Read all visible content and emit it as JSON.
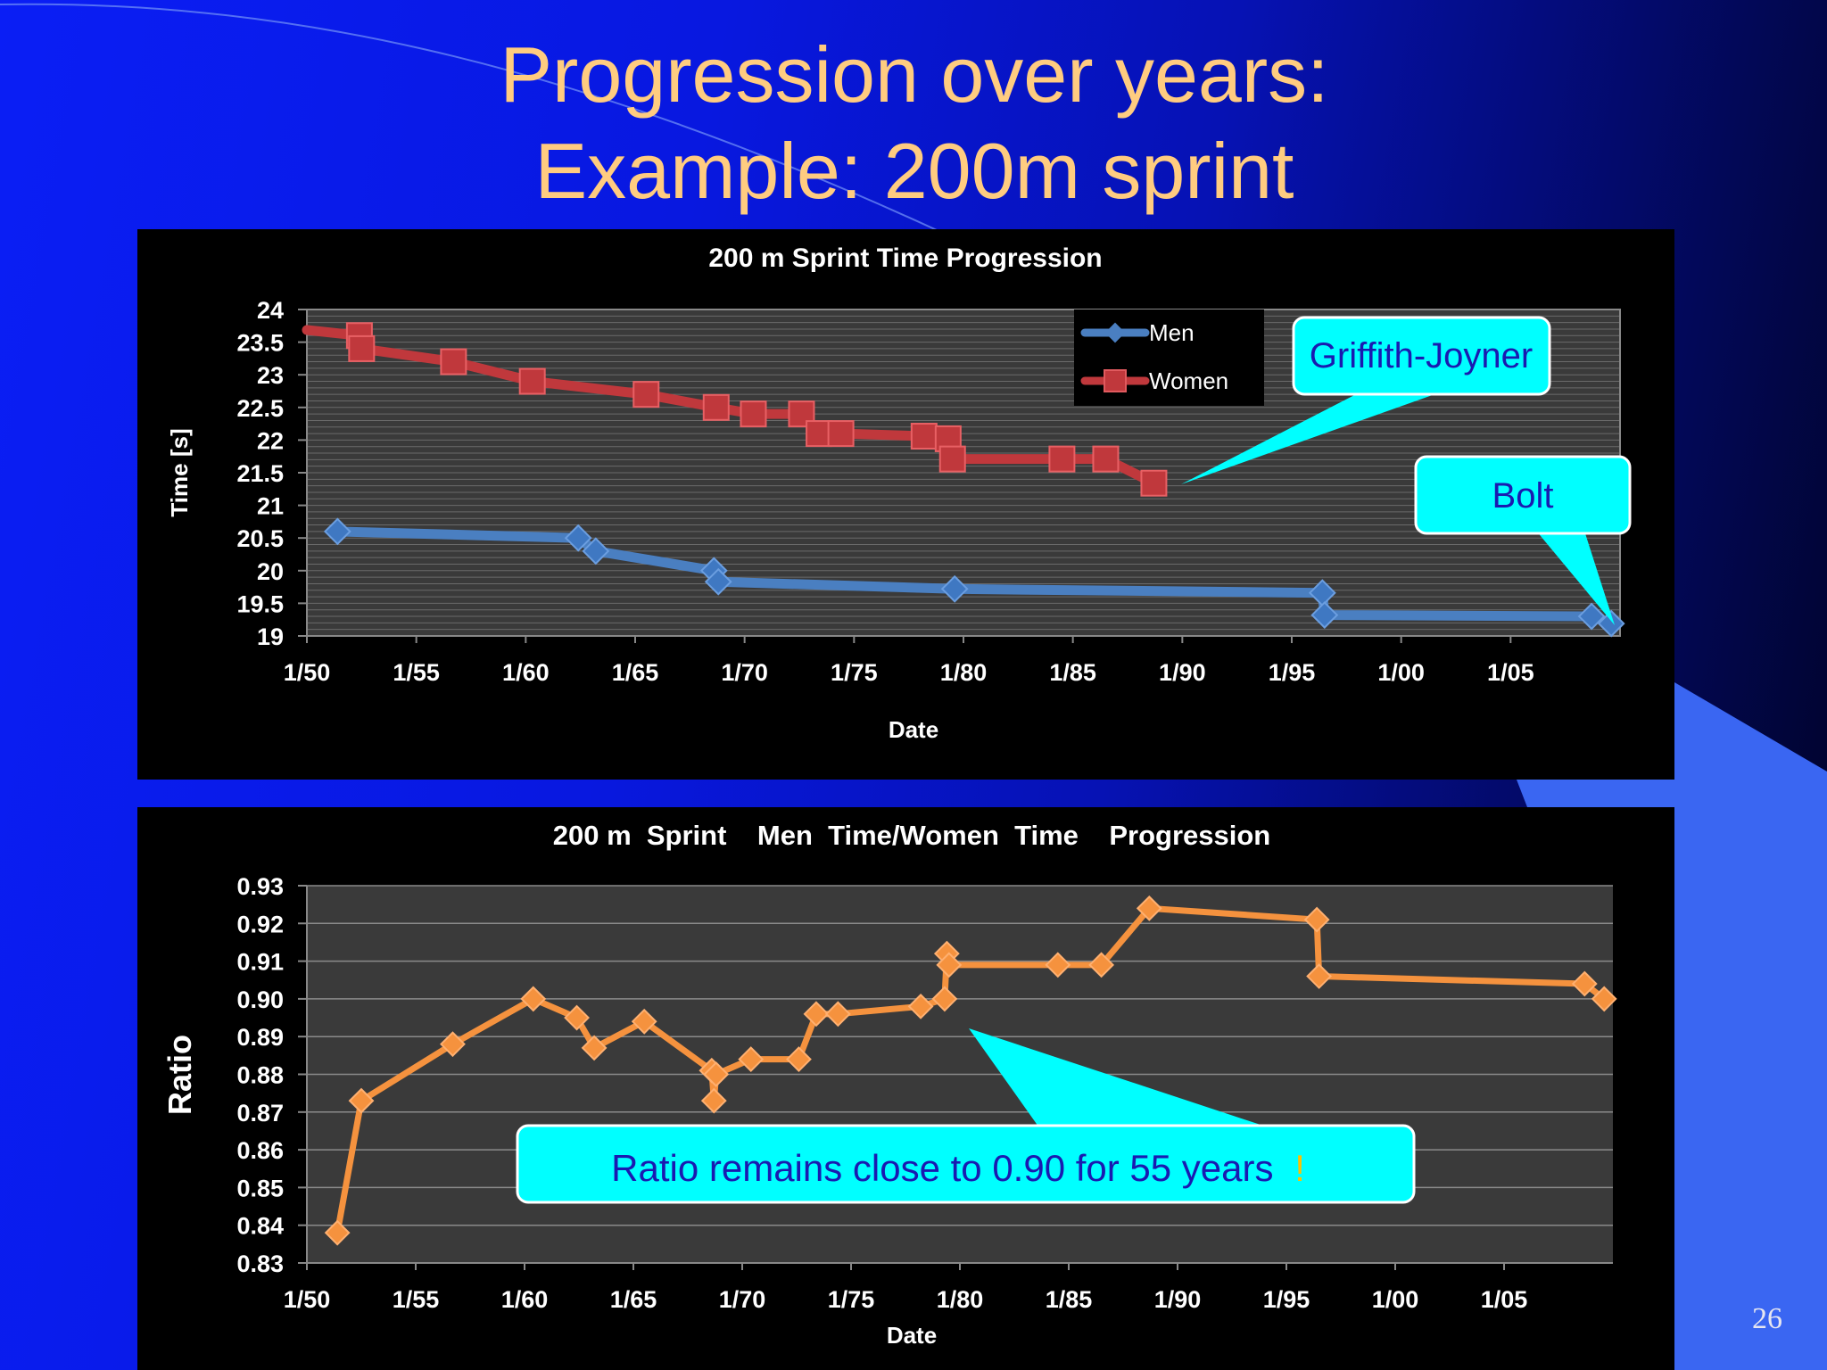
{
  "slide": {
    "title_line1": "Progression over years:",
    "title_line2": "Example:  200m sprint",
    "page_number": "26"
  },
  "colors": {
    "title": "#ffcc80",
    "men": "#4a7fc1",
    "women": "#c0383c",
    "ratio": "#f5923e",
    "callout": "#00ffff",
    "callout_text": "#1a1ab0",
    "plot_bg": "#3a3a3a",
    "panel_bg": "#000000"
  },
  "chart_data": [
    {
      "type": "line",
      "title": "200 m  Sprint Time Progression",
      "xlabel": "Date",
      "ylabel": "Time [s]",
      "xlim": [
        1950,
        2010
      ],
      "ylim": [
        19,
        24
      ],
      "x_ticks": [
        "1/50",
        "1/55",
        "1/60",
        "1/65",
        "1/70",
        "1/75",
        "1/80",
        "1/85",
        "1/90",
        "1/95",
        "1/00",
        "1/05"
      ],
      "y_ticks": [
        "19",
        "19.5",
        "20",
        "20.5",
        "21",
        "21.5",
        "22",
        "22.5",
        "23",
        "23.5",
        "24"
      ],
      "grid": true,
      "legend": "top-center",
      "series": [
        {
          "name": "Men",
          "x": [
            1951.4,
            1962.4,
            1963.2,
            1968.6,
            1968.8,
            1979.6,
            1996.4,
            1996.5,
            2008.7,
            2009.6
          ],
          "y": [
            20.6,
            20.5,
            20.3,
            20.0,
            19.83,
            19.72,
            19.66,
            19.32,
            19.3,
            19.19
          ]
        },
        {
          "name": "Women",
          "x": [
            1944.0,
            1952.4,
            1952.5,
            1956.7,
            1960.3,
            1965.5,
            1968.7,
            1970.4,
            1972.6,
            1973.4,
            1974.4,
            1978.2,
            1979.3,
            1979.5,
            1984.5,
            1986.5,
            1988.7
          ],
          "y": [
            23.9,
            23.6,
            23.4,
            23.2,
            22.9,
            22.7,
            22.5,
            22.4,
            22.4,
            22.1,
            22.1,
            22.06,
            22.02,
            21.71,
            21.71,
            21.71,
            21.34
          ]
        }
      ],
      "annotations": [
        {
          "text": "Griffith-Joyner"
        },
        {
          "text": "Bolt"
        }
      ]
    },
    {
      "type": "line",
      "title": "200 m  Sprint    Men  Time/Women  Time    Progression",
      "xlabel": "Date",
      "ylabel": "Ratio",
      "xlim": [
        1950,
        2010
      ],
      "ylim": [
        0.83,
        0.93
      ],
      "x_ticks": [
        "1/50",
        "1/55",
        "1/60",
        "1/65",
        "1/70",
        "1/75",
        "1/80",
        "1/85",
        "1/90",
        "1/95",
        "1/00",
        "1/05"
      ],
      "y_ticks": [
        "0.83",
        "0.84",
        "0.85",
        "0.86",
        "0.87",
        "0.88",
        "0.89",
        "0.90",
        "0.91",
        "0.92",
        "0.93"
      ],
      "grid": true,
      "series": [
        {
          "name": "",
          "x": [
            1951.4,
            1952.5,
            1956.7,
            1960.4,
            1962.4,
            1963.2,
            1965.5,
            1968.6,
            1968.7,
            1968.8,
            1970.4,
            1972.6,
            1973.4,
            1974.4,
            1978.2,
            1979.3,
            1979.4,
            1979.5,
            1984.5,
            1986.5,
            1988.7,
            1996.4,
            1996.5,
            2008.7,
            2009.6
          ],
          "y": [
            0.838,
            0.873,
            0.888,
            0.9,
            0.895,
            0.887,
            0.894,
            0.881,
            0.873,
            0.88,
            0.884,
            0.884,
            0.896,
            0.896,
            0.898,
            0.9,
            0.912,
            0.909,
            0.909,
            0.909,
            0.924,
            0.921,
            0.906,
            0.904,
            0.9
          ]
        }
      ],
      "annotations": [
        {
          "text": "Ratio remains close to 0.90 for 55 years",
          "suffix": "!"
        }
      ]
    }
  ]
}
